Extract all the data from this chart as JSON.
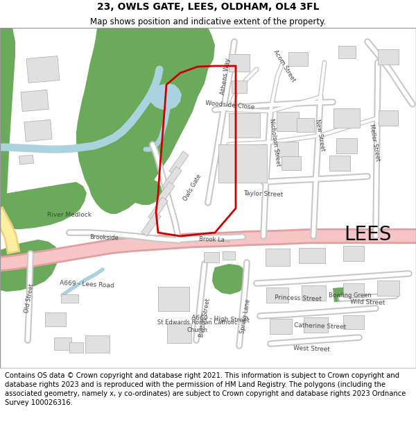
{
  "title": "23, OWLS GATE, LEES, OLDHAM, OL4 3FL",
  "subtitle": "Map shows position and indicative extent of the property.",
  "footer": "Contains OS data © Crown copyright and database right 2021. This information is subject to Crown copyright and database rights 2023 and is reproduced with the permission of HM Land Registry. The polygons (including the associated geometry, namely x, y co-ordinates) are subject to Crown copyright and database rights 2023 Ordnance Survey 100026316.",
  "title_fontsize": 10,
  "subtitle_fontsize": 8.5,
  "footer_fontsize": 7.2,
  "map_bg": "#ffffff",
  "green1": "#6aaa5a",
  "green2": "#6aaa5a",
  "blue_water": "#aad3df",
  "blue_river": "#aad3df",
  "road_pink_fill": "#f7c5c5",
  "road_pink_border": "#e0a0a0",
  "road_white_fill": "#ffffff",
  "road_gray_border": "#c8c8c8",
  "building_fill": "#e0e0e0",
  "building_border": "#aaaaaa",
  "red_line": "#cc0000",
  "lees_size": 20,
  "yellow_road": "#fef6c8",
  "yellow_border": "#e8da8a",
  "text_dark": "#555555",
  "title_color": "#000000"
}
